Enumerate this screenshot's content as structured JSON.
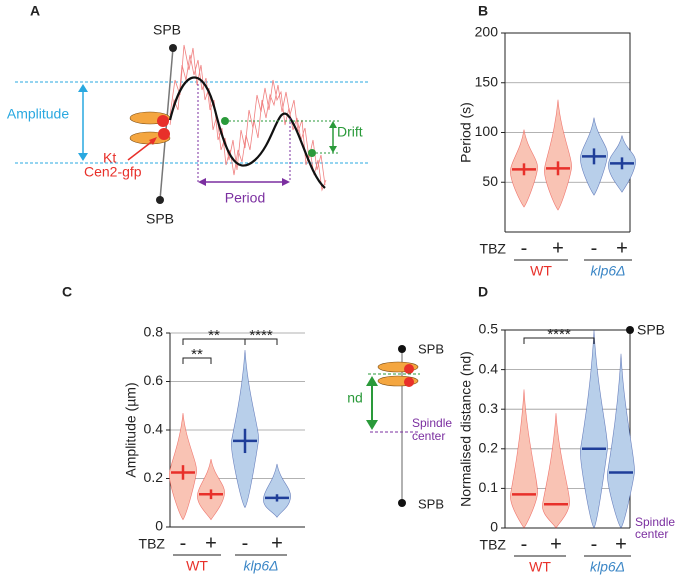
{
  "diagram_a": {
    "panel": "A",
    "spb_top": "SPB",
    "spb_bottom": "SPB",
    "amplitude": "Amplitude",
    "kt": "Kt",
    "cen2": "Cen2-gfp",
    "period": "Period",
    "drift": "Drift"
  },
  "diagram_d": {
    "spb_top": "SPB",
    "spb_bottom": "SPB",
    "nd": "nd",
    "spindle_center": [
      "Spindle",
      "center"
    ]
  },
  "chart_data": [
    {
      "type": "violin",
      "panel": "B",
      "y_label": "Period (s)",
      "condition_label": "TBZ",
      "categories": [
        "-",
        "+",
        "-",
        "+"
      ],
      "groups": [
        {
          "name": "WT",
          "color": "#e8302a"
        },
        {
          "name": "klp6Δ",
          "color": "#3b86c6"
        }
      ],
      "values": [
        63,
        64,
        76,
        69
      ],
      "errors": [
        6,
        7,
        8,
        6
      ],
      "min": [
        25,
        22,
        37,
        40
      ],
      "max": [
        103,
        133,
        115,
        97
      ],
      "colors": [
        "#e8302a",
        "#e8302a",
        "#1f3e99",
        "#1f3e99"
      ],
      "fills": [
        "#f9c3b4",
        "#f9c3b4",
        "#b8cfea",
        "#b8cfea"
      ],
      "ylim": [
        0,
        200
      ],
      "yticks": [
        50,
        100,
        150,
        200
      ],
      "grid": true
    },
    {
      "type": "violin",
      "panel": "C",
      "y_label": "Amplitude (µm)",
      "condition_label": "TBZ",
      "categories": [
        "-",
        "+",
        "-",
        "+"
      ],
      "groups": [
        {
          "name": "WT",
          "color": "#e8302a"
        },
        {
          "name": "klp6Δ",
          "color": "#3b86c6"
        }
      ],
      "values": [
        0.225,
        0.135,
        0.355,
        0.12
      ],
      "errors": [
        0.03,
        0.02,
        0.05,
        0.015
      ],
      "min": [
        0.03,
        0.03,
        0.08,
        0.04
      ],
      "max": [
        0.47,
        0.28,
        0.73,
        0.26
      ],
      "colors": [
        "#e8302a",
        "#e8302a",
        "#1f3e99",
        "#1f3e99"
      ],
      "fills": [
        "#f9c3b4",
        "#f9c3b4",
        "#b8cfea",
        "#b8cfea"
      ],
      "ylim": [
        0,
        0.8
      ],
      "yticks": [
        0,
        0.2,
        0.4,
        0.6,
        0.8
      ],
      "grid": true,
      "significance": [
        {
          "from": 0,
          "to": 1,
          "label": "**"
        },
        {
          "from": 0,
          "to": 2,
          "label": "**"
        },
        {
          "from": 2,
          "to": 3,
          "label": "****"
        }
      ]
    },
    {
      "type": "violin",
      "panel": "D",
      "y_label": "Normalised distance (nd)",
      "condition_label": "TBZ",
      "categories": [
        "-",
        "+",
        "-",
        "+"
      ],
      "groups": [
        {
          "name": "WT",
          "color": "#e8302a"
        },
        {
          "name": "klp6Δ",
          "color": "#3b86c6"
        }
      ],
      "values": [
        0.085,
        0.06,
        0.2,
        0.14
      ],
      "min": [
        0,
        0,
        0,
        0
      ],
      "max": [
        0.35,
        0.29,
        0.5,
        0.44
      ],
      "colors": [
        "#e8302a",
        "#e8302a",
        "#1f3e99",
        "#1f3e99"
      ],
      "fills": [
        "#f9c3b4",
        "#f9c3b4",
        "#b8cfea",
        "#b8cfea"
      ],
      "ylim": [
        0,
        0.5
      ],
      "yticks": [
        0,
        0.1,
        0.2,
        0.3,
        0.4,
        0.5
      ],
      "grid": true,
      "significance": [
        {
          "from": 0,
          "to": 2,
          "label": "****"
        }
      ],
      "top_label": "SPB",
      "bottom_label": [
        "Spindle",
        "center"
      ]
    }
  ]
}
